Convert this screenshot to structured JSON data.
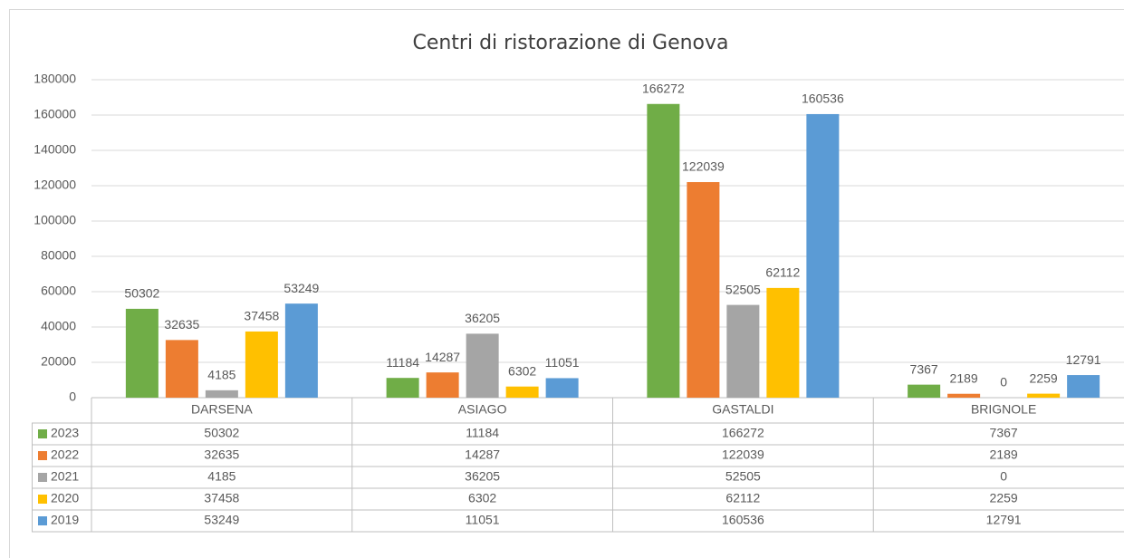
{
  "chart_data": {
    "type": "bar",
    "title": "Centri di ristorazione di Genova",
    "categories": [
      "DARSENA",
      "ASIAGO",
      "GASTALDI",
      "BRIGNOLE"
    ],
    "series": [
      {
        "name": "2023",
        "color": "#70ad47",
        "values": [
          50302,
          11184,
          166272,
          7367
        ]
      },
      {
        "name": "2022",
        "color": "#ed7d31",
        "values": [
          32635,
          14287,
          122039,
          2189
        ]
      },
      {
        "name": "2021",
        "color": "#a5a5a5",
        "values": [
          4185,
          36205,
          52505,
          0
        ]
      },
      {
        "name": "2020",
        "color": "#ffc000",
        "values": [
          37458,
          6302,
          62112,
          2259
        ]
      },
      {
        "name": "2019",
        "color": "#5b9bd5",
        "values": [
          53249,
          11051,
          160536,
          12791
        ]
      }
    ],
    "ylim": [
      0,
      180000
    ],
    "yticks": [
      0,
      20000,
      40000,
      60000,
      80000,
      100000,
      120000,
      140000,
      160000,
      180000
    ],
    "grid": true
  }
}
